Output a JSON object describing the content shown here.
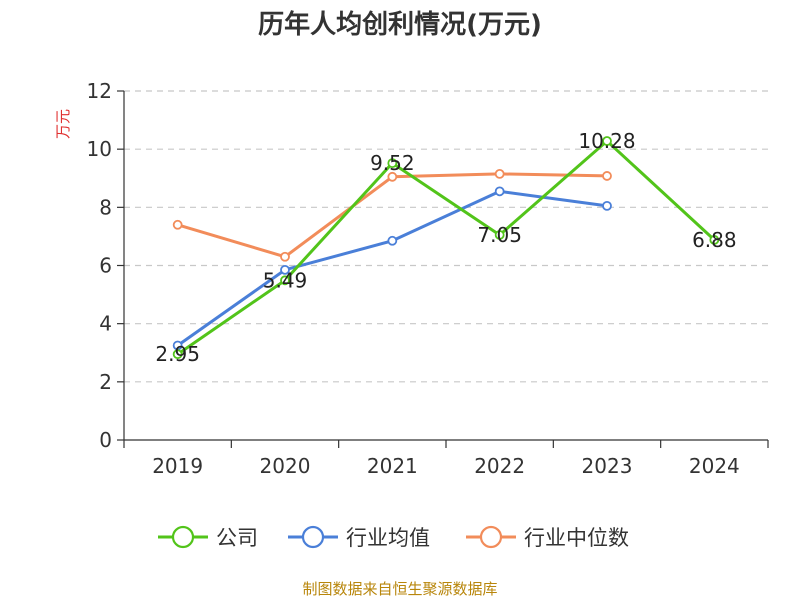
{
  "chart_data": {
    "type": "line",
    "title": "历年人均创利情况(万元)",
    "ylabel": "万元",
    "xlabel": "",
    "categories": [
      "2019",
      "2020",
      "2021",
      "2022",
      "2023",
      "2024"
    ],
    "ylim": [
      0,
      12
    ],
    "yticks": [
      0,
      2,
      4,
      6,
      8,
      10,
      12
    ],
    "grid": true,
    "legend_position": "bottom",
    "series": [
      {
        "name": "公司",
        "color": "#52c41a",
        "values": [
          2.95,
          5.49,
          9.52,
          7.05,
          10.28,
          6.88
        ],
        "labels": [
          "2.95",
          "5.49",
          "9.52",
          "7.05",
          "10.28",
          "6.88"
        ]
      },
      {
        "name": "行业均值",
        "color": "#4a7fd8",
        "values": [
          3.25,
          5.85,
          6.85,
          8.55,
          8.05,
          null
        ]
      },
      {
        "name": "行业中位数",
        "color": "#f28c5a",
        "values": [
          7.4,
          6.3,
          9.05,
          9.15,
          9.08,
          null
        ]
      }
    ]
  },
  "source": "制图数据来自恒生聚源数据库"
}
